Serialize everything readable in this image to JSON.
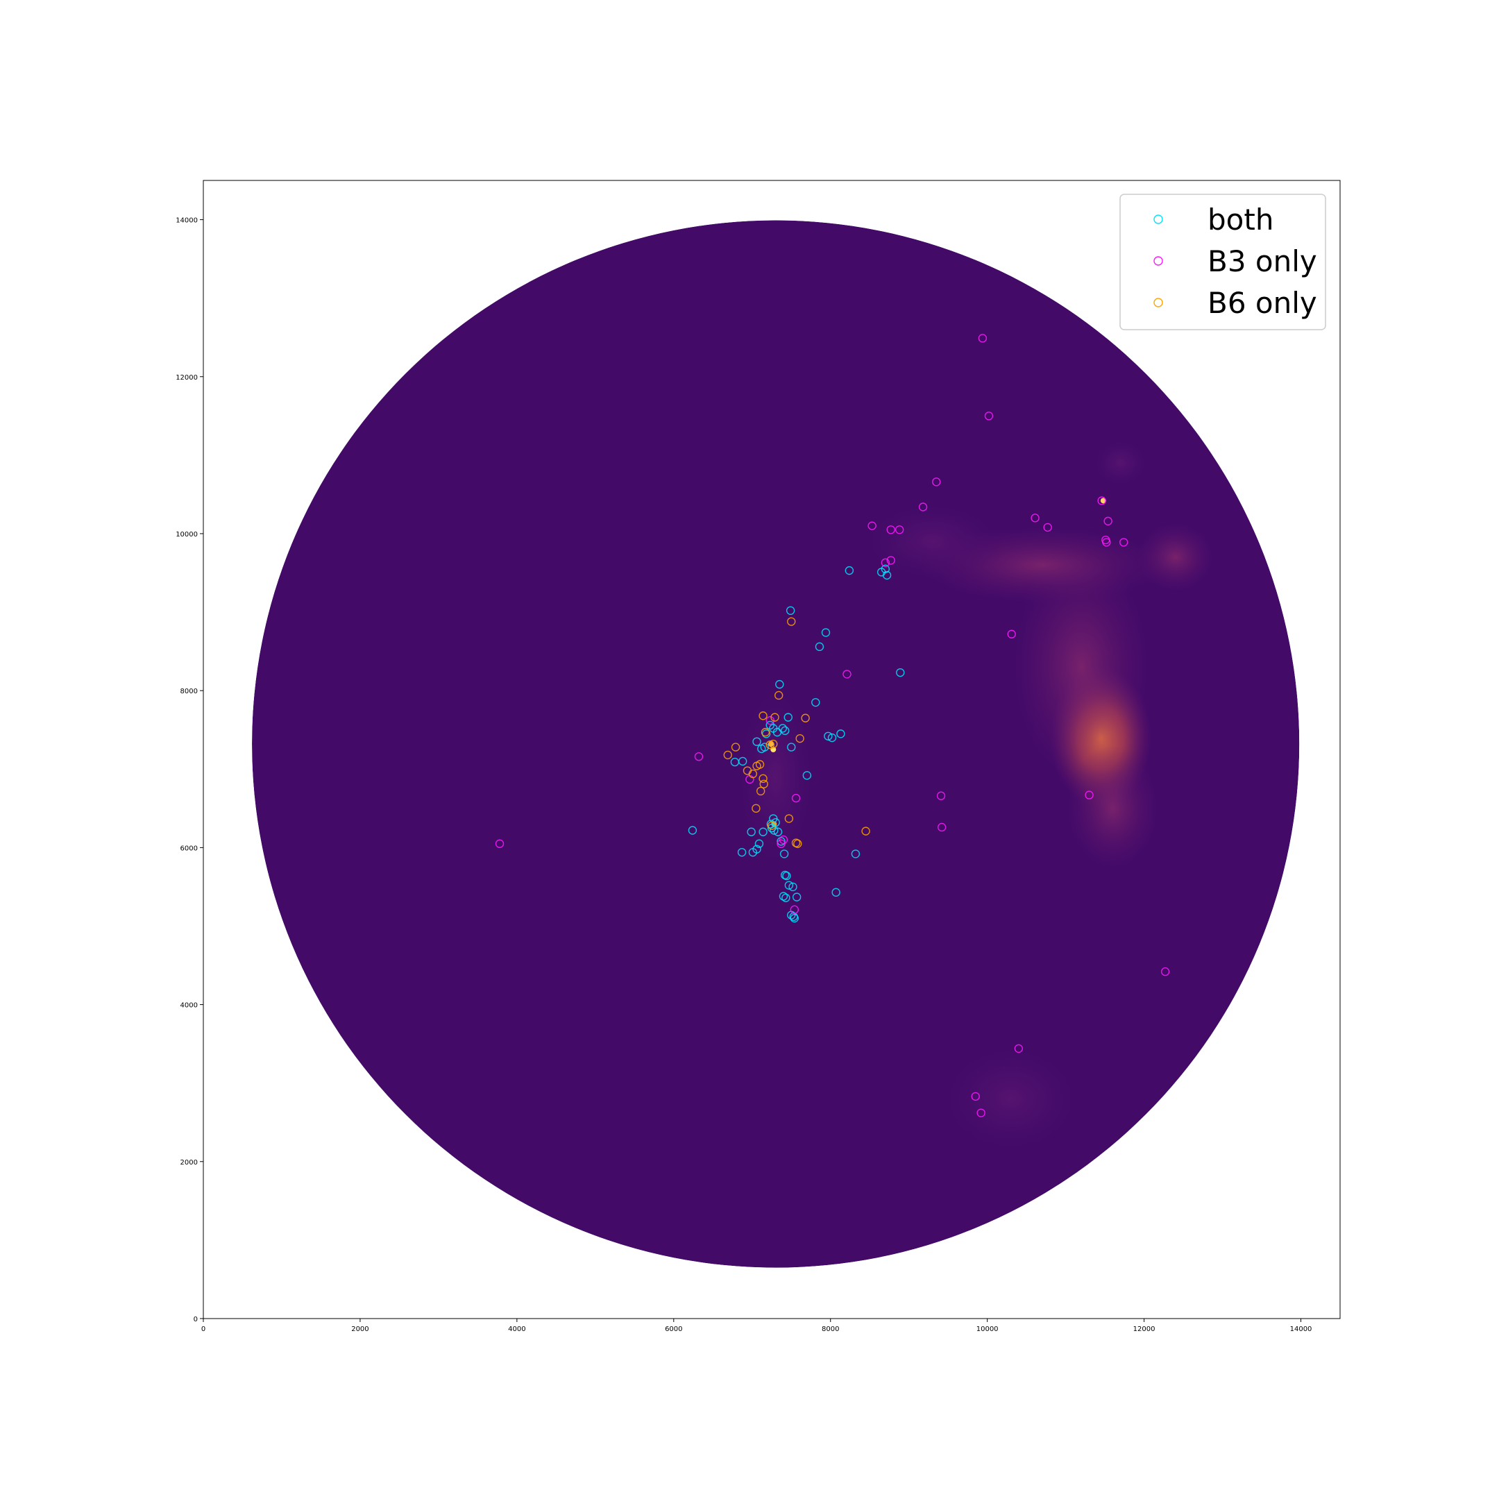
{
  "chart_data": {
    "type": "scatter",
    "title": "",
    "xlabel": "",
    "ylabel": "",
    "xlim": [
      0,
      14500
    ],
    "ylim": [
      0,
      14500
    ],
    "grid": false,
    "legend_position": "top-right",
    "background_image": {
      "description": "circular map",
      "center": [
        7300,
        7320
      ],
      "radius": 6680,
      "colormap_base": "#430a68",
      "emission_color": "#c84e4a"
    },
    "x_ticks": [
      0,
      2000,
      4000,
      6000,
      8000,
      10000,
      12000,
      14000
    ],
    "y_ticks": [
      0,
      2000,
      4000,
      6000,
      8000,
      10000,
      12000,
      14000
    ],
    "x_tick_labels": [
      "0",
      "2000",
      "4000",
      "6000",
      "8000",
      "10000",
      "12000",
      "14000"
    ],
    "y_tick_labels": [
      "0",
      "2000",
      "4000",
      "6000",
      "8000",
      "10000",
      "12000",
      "14000"
    ],
    "series": [
      {
        "name": "both",
        "color": "#00e5ff",
        "points": [
          [
            8240,
            9530
          ],
          [
            8650,
            9510
          ],
          [
            8700,
            9550
          ],
          [
            8720,
            9470
          ],
          [
            7490,
            9020
          ],
          [
            7940,
            8740
          ],
          [
            7860,
            8560
          ],
          [
            8890,
            8230
          ],
          [
            7350,
            8080
          ],
          [
            7810,
            7850
          ],
          [
            7460,
            7660
          ],
          [
            7230,
            7560
          ],
          [
            7270,
            7520
          ],
          [
            7320,
            7470
          ],
          [
            7390,
            7520
          ],
          [
            7420,
            7490
          ],
          [
            7180,
            7450
          ],
          [
            7060,
            7350
          ],
          [
            7120,
            7260
          ],
          [
            7160,
            7280
          ],
          [
            7970,
            7420
          ],
          [
            8020,
            7400
          ],
          [
            8130,
            7450
          ],
          [
            7500,
            7280
          ],
          [
            6880,
            7100
          ],
          [
            6780,
            7090
          ],
          [
            7700,
            6920
          ],
          [
            6240,
            6220
          ],
          [
            6990,
            6200
          ],
          [
            7140,
            6200
          ],
          [
            7240,
            6300
          ],
          [
            7270,
            6370
          ],
          [
            7300,
            6320
          ],
          [
            7250,
            6250
          ],
          [
            7280,
            6220
          ],
          [
            7330,
            6200
          ],
          [
            7370,
            6080
          ],
          [
            7090,
            6050
          ],
          [
            7060,
            5980
          ],
          [
            7010,
            5940
          ],
          [
            6870,
            5940
          ],
          [
            7410,
            5920
          ],
          [
            8320,
            5920
          ],
          [
            7420,
            5650
          ],
          [
            7440,
            5640
          ],
          [
            7470,
            5520
          ],
          [
            7520,
            5500
          ],
          [
            8070,
            5430
          ],
          [
            7400,
            5380
          ],
          [
            7430,
            5360
          ],
          [
            7570,
            5370
          ],
          [
            7500,
            5140
          ],
          [
            7530,
            5120
          ],
          [
            7540,
            5100
          ]
        ]
      },
      {
        "name": "B3 only",
        "color": "#ff1aff",
        "points": [
          [
            9940,
            12490
          ],
          [
            10020,
            11500
          ],
          [
            9350,
            10660
          ],
          [
            9180,
            10340
          ],
          [
            8530,
            10100
          ],
          [
            8770,
            10050
          ],
          [
            8880,
            10050
          ],
          [
            8700,
            9630
          ],
          [
            8770,
            9660
          ],
          [
            11460,
            10420
          ],
          [
            11540,
            10160
          ],
          [
            10610,
            10200
          ],
          [
            10770,
            10080
          ],
          [
            11510,
            9920
          ],
          [
            11520,
            9890
          ],
          [
            11740,
            9890
          ],
          [
            10310,
            8720
          ],
          [
            8210,
            8210
          ],
          [
            6320,
            7160
          ],
          [
            6970,
            6870
          ],
          [
            7230,
            7620
          ],
          [
            7560,
            6630
          ],
          [
            9410,
            6660
          ],
          [
            9420,
            6260
          ],
          [
            11300,
            6670
          ],
          [
            3780,
            6050
          ],
          [
            7400,
            6100
          ],
          [
            7370,
            6050
          ],
          [
            7540,
            5210
          ],
          [
            12270,
            4420
          ],
          [
            10400,
            3440
          ],
          [
            9850,
            2830
          ],
          [
            9920,
            2620
          ]
        ]
      },
      {
        "name": "B6 only",
        "color": "#ffa500",
        "points": [
          [
            7500,
            8880
          ],
          [
            7340,
            7940
          ],
          [
            7140,
            7680
          ],
          [
            7290,
            7660
          ],
          [
            7680,
            7650
          ],
          [
            7170,
            7470
          ],
          [
            7610,
            7390
          ],
          [
            6790,
            7280
          ],
          [
            6690,
            7180
          ],
          [
            7230,
            7310
          ],
          [
            7270,
            7320
          ],
          [
            7100,
            7060
          ],
          [
            7060,
            7040
          ],
          [
            6940,
            6980
          ],
          [
            7010,
            6940
          ],
          [
            7140,
            6880
          ],
          [
            7150,
            6810
          ],
          [
            7110,
            6720
          ],
          [
            7050,
            6500
          ],
          [
            7470,
            6370
          ],
          [
            8450,
            6210
          ],
          [
            7250,
            6280
          ],
          [
            7560,
            6060
          ],
          [
            7580,
            6050
          ]
        ]
      }
    ]
  }
}
